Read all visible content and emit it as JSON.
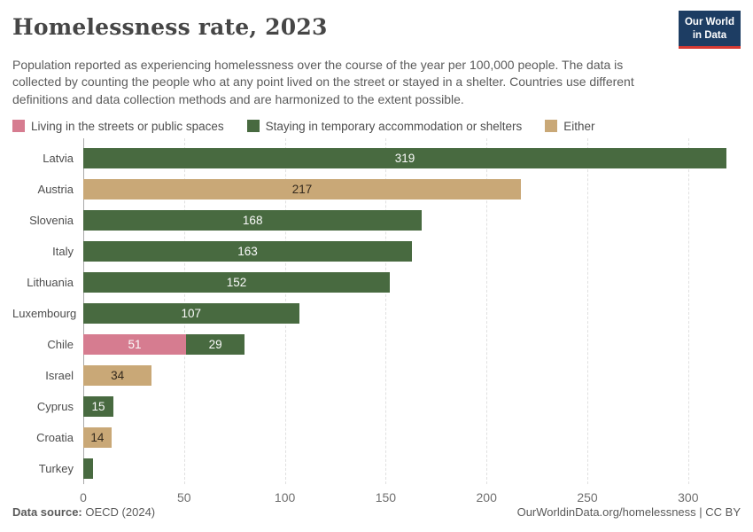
{
  "header": {
    "title": "Homelessness rate, 2023",
    "subtitle": "Population reported as experiencing homelessness over the course of the year per 100,000 people. The data is collected by counting the people who at any point lived on the street or stayed in a shelter. Countries use different definitions and data collection methods and are harmonized to the extent possible.",
    "logo": {
      "line1": "Our World",
      "line2": "in Data",
      "bg_color": "#1d3d63",
      "accent_color": "#d63a33"
    }
  },
  "legend": [
    {
      "key": "streets",
      "label": "Living in the streets or public spaces",
      "color": "#d67c90",
      "label_text_color": "#fbfbfb"
    },
    {
      "key": "shelters",
      "label": "Staying in temporary accommodation or shelters",
      "color": "#486a40",
      "label_text_color": "#fbfbfb"
    },
    {
      "key": "either",
      "label": "Either",
      "color": "#c9a877",
      "label_text_color": "#33291d"
    }
  ],
  "chart_data": {
    "type": "bar",
    "orientation": "horizontal",
    "stacked": true,
    "title": "Homelessness rate, 2023",
    "xlabel": "",
    "ylabel": "",
    "unit": "per 100,000 people",
    "xlim": [
      0,
      326
    ],
    "x_ticks": [
      0,
      50,
      100,
      150,
      200,
      250,
      300
    ],
    "grid": "dashed-vertical",
    "rows": [
      {
        "country": "Latvia",
        "segments": [
          {
            "series": "shelters",
            "value": 319,
            "show_label": true
          }
        ]
      },
      {
        "country": "Austria",
        "segments": [
          {
            "series": "either",
            "value": 217,
            "show_label": true
          }
        ]
      },
      {
        "country": "Slovenia",
        "segments": [
          {
            "series": "shelters",
            "value": 168,
            "show_label": true
          }
        ]
      },
      {
        "country": "Italy",
        "segments": [
          {
            "series": "shelters",
            "value": 163,
            "show_label": true
          }
        ]
      },
      {
        "country": "Lithuania",
        "segments": [
          {
            "series": "shelters",
            "value": 152,
            "show_label": true
          }
        ]
      },
      {
        "country": "Luxembourg",
        "segments": [
          {
            "series": "shelters",
            "value": 107,
            "show_label": true
          }
        ]
      },
      {
        "country": "Chile",
        "segments": [
          {
            "series": "streets",
            "value": 51,
            "show_label": true
          },
          {
            "series": "shelters",
            "value": 29,
            "show_label": true
          }
        ]
      },
      {
        "country": "Israel",
        "segments": [
          {
            "series": "either",
            "value": 34,
            "show_label": true
          }
        ]
      },
      {
        "country": "Cyprus",
        "segments": [
          {
            "series": "shelters",
            "value": 15,
            "show_label": true
          }
        ]
      },
      {
        "country": "Croatia",
        "segments": [
          {
            "series": "either",
            "value": 14,
            "show_label": true
          }
        ]
      },
      {
        "country": "Turkey",
        "segments": [
          {
            "series": "shelters",
            "value": 5,
            "show_label": false
          }
        ]
      }
    ]
  },
  "footer": {
    "source_label": "Data source:",
    "source_value": "OECD (2024)",
    "right_text": "OurWorldinData.org/homelessness | CC BY"
  }
}
